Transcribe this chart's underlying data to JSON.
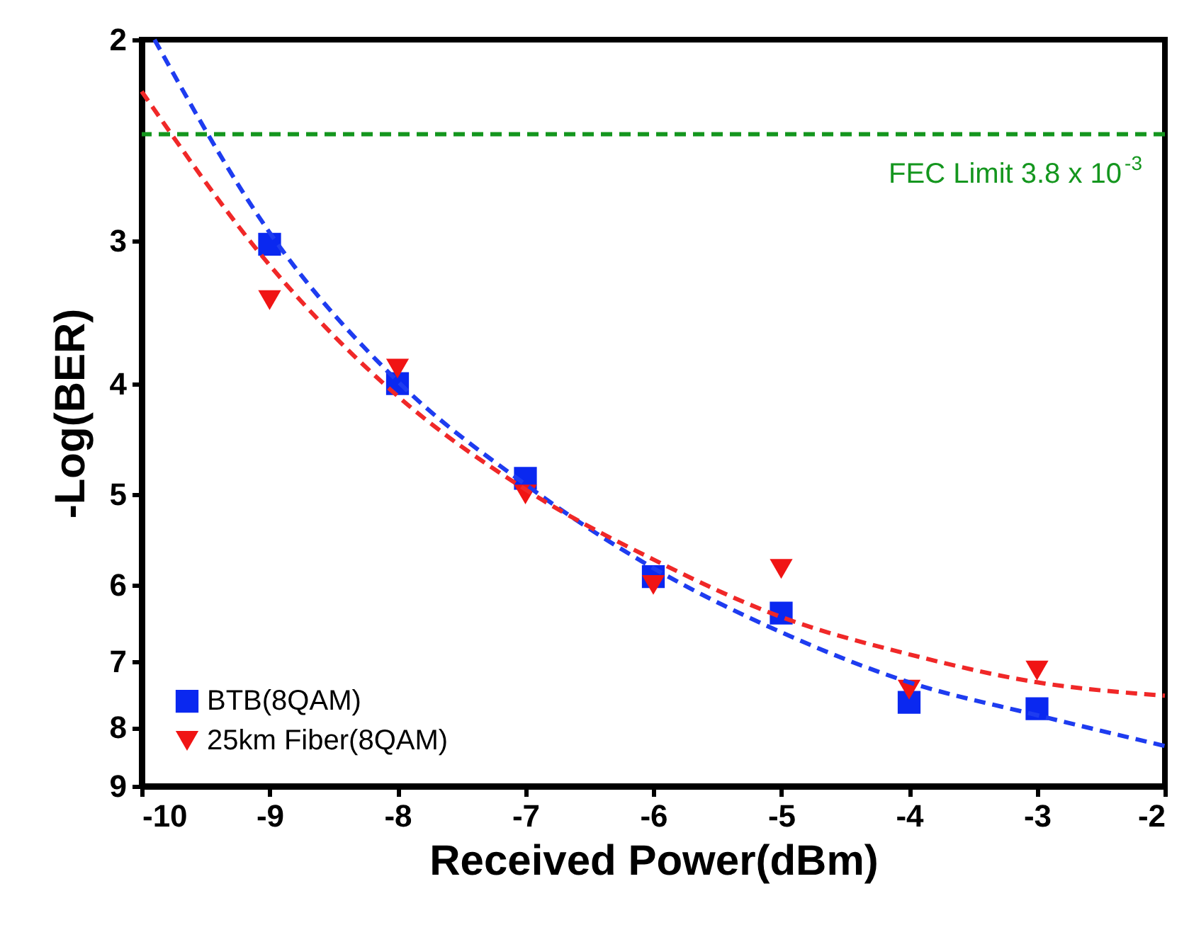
{
  "chart_data": {
    "type": "scatter",
    "xlabel": "Received Power(dBm)",
    "ylabel": "-Log(BER)",
    "log": "y",
    "xlim": [
      -10,
      -2
    ],
    "xticks": [
      -10,
      -9,
      -8,
      -7,
      -6,
      -5,
      -4,
      -3,
      -2
    ],
    "ylim": [
      9,
      2
    ],
    "yticks": [
      2,
      3,
      4,
      5,
      6,
      7,
      8,
      9
    ],
    "legend": "bottom left",
    "x": [
      -9,
      -8,
      -7,
      -6,
      -5,
      -4,
      -3
    ],
    "series": [
      {
        "name": "BTB(8QAM)",
        "marker": "square",
        "color": "#0a28f0",
        "values": [
          3.02,
          4.0,
          4.84,
          5.9,
          6.35,
          7.6,
          7.7
        ]
      },
      {
        "name": "25km Fiber(8QAM)",
        "marker": "triangle",
        "color": "#f01414",
        "values": [
          3.38,
          3.88,
          5.0,
          6.0,
          5.81,
          7.41,
          7.13
        ]
      },
      {
        "type": "line",
        "line_style": "dashed",
        "color": "#1e3cf0",
        "x": [
          -9.9,
          -9,
          -8,
          -7,
          -6,
          -5,
          -4,
          -3,
          -2
        ],
        "values": [
          2.0,
          2.95,
          3.98,
          4.9,
          5.8,
          6.6,
          7.3,
          7.8,
          8.3
        ]
      },
      {
        "type": "line",
        "line_style": "dashed",
        "color": "#f02828",
        "x": [
          -10,
          -9,
          -8,
          -7,
          -6,
          -5,
          -4,
          -3,
          -2
        ],
        "values": [
          2.22,
          3.15,
          4.1,
          4.95,
          5.7,
          6.4,
          6.9,
          7.3,
          7.5
        ]
      }
    ],
    "ref_lines": [
      {
        "axis": "y",
        "value": 2.42,
        "label": "FEC Limit  3.8 x 10$^{-3}$",
        "color": "#14961e",
        "line_style": "dashed"
      }
    ]
  }
}
